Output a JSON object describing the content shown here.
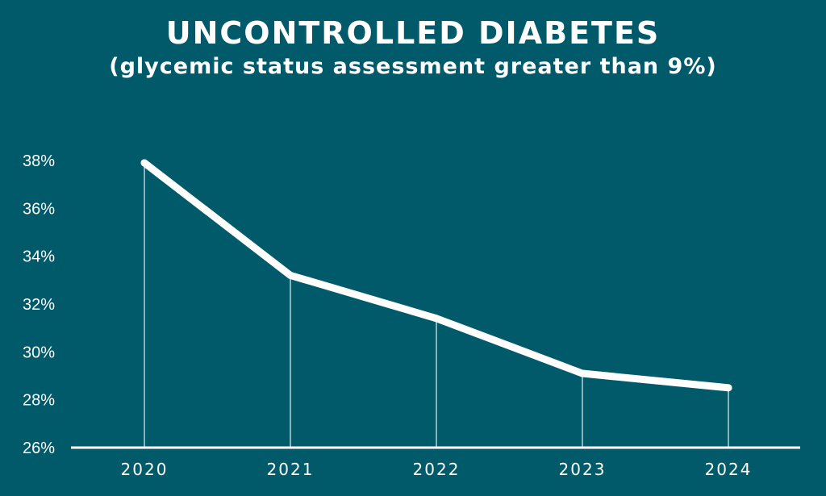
{
  "title": "UNCONTROLLED DIABETES",
  "subtitle": "(glycemic status assessment greater than 9%)",
  "colors": {
    "background": "#005a6a",
    "line": "#ffffff",
    "text": "#ffffff"
  },
  "chart_data": {
    "type": "line",
    "title": "UNCONTROLLED DIABETES",
    "subtitle": "(glycemic status assessment greater than 9%)",
    "xlabel": "",
    "ylabel": "",
    "categories": [
      "2020",
      "2021",
      "2022",
      "2023",
      "2024"
    ],
    "values": [
      37.9,
      33.2,
      31.4,
      29.1,
      28.5
    ],
    "ylim": [
      26,
      38
    ],
    "yticks": [
      26,
      28,
      30,
      32,
      34,
      36,
      38
    ],
    "ytick_labels": [
      "26%",
      "28%",
      "30%",
      "32%",
      "34%",
      "36%",
      "38%"
    ],
    "grid": false,
    "legend": "none",
    "drop_lines": true
  }
}
